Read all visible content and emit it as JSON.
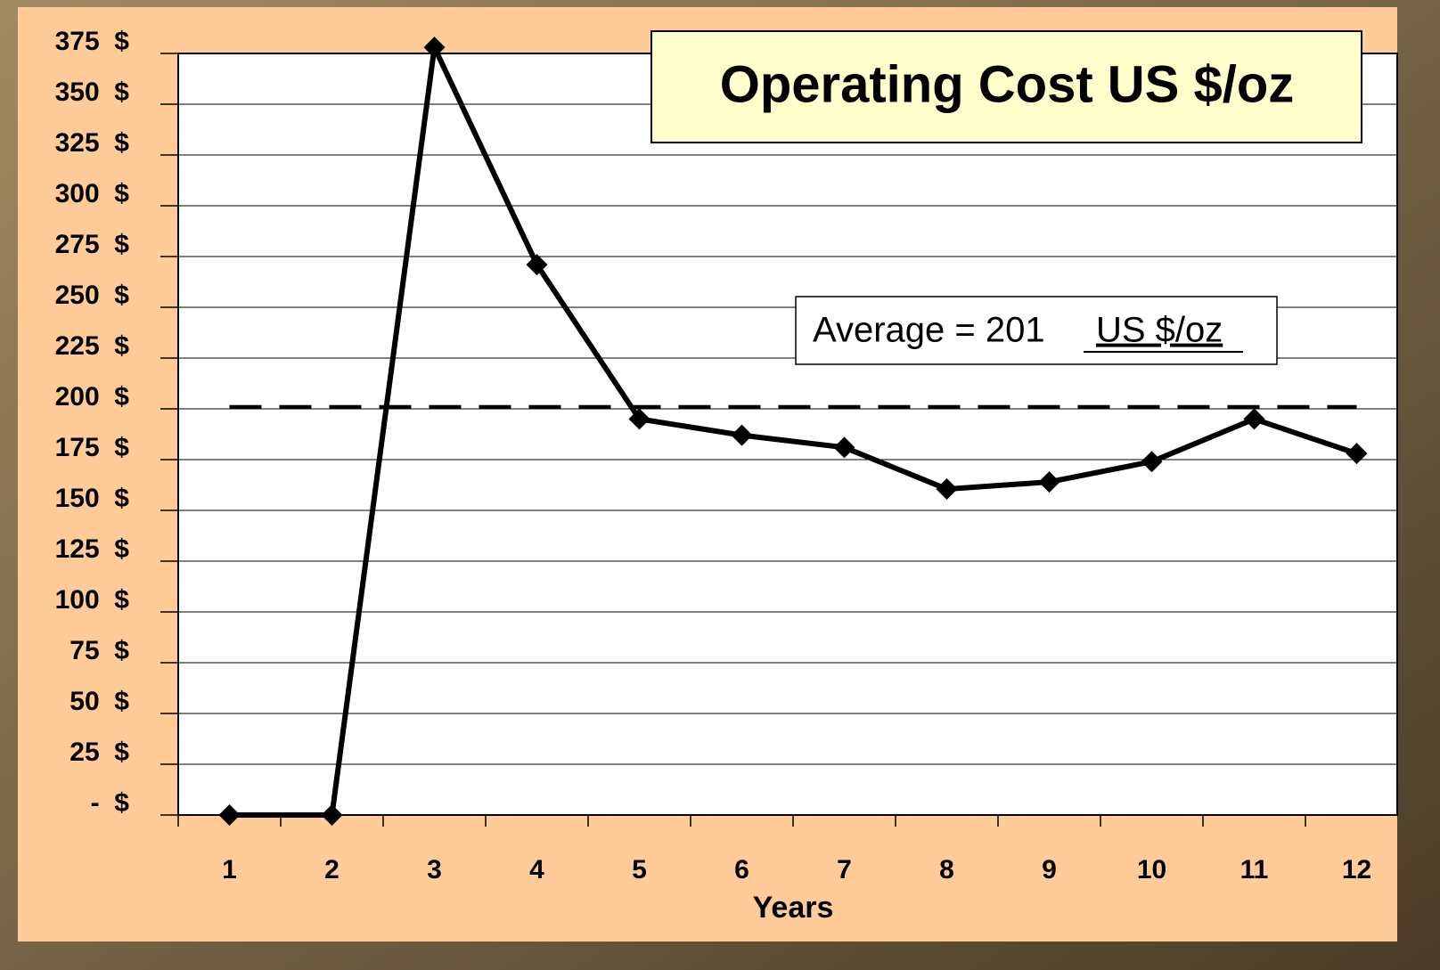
{
  "chart_data": {
    "type": "line",
    "title": "Operating Cost  US $/oz",
    "xlabel": "Years",
    "categories": [
      "1",
      "2",
      "3",
      "4",
      "5",
      "6",
      "7",
      "8",
      "9",
      "10",
      "11",
      "12"
    ],
    "series": [
      {
        "name": "Operating Cost",
        "color": "#000000",
        "values": [
          0,
          0,
          378,
          271,
          195,
          187,
          181,
          160.5,
          164,
          174,
          195,
          178
        ]
      }
    ],
    "average": 201,
    "annotation": "Average = 201",
    "annotation_unit": "US $/oz",
    "ylim": [
      0,
      375
    ],
    "yticks": [
      {
        "value": 0,
        "label": "-  $"
      },
      {
        "value": 25,
        "label": "25  $"
      },
      {
        "value": 50,
        "label": "50  $"
      },
      {
        "value": 75,
        "label": "75  $"
      },
      {
        "value": 100,
        "label": "100  $"
      },
      {
        "value": 125,
        "label": "125  $"
      },
      {
        "value": 150,
        "label": "150  $"
      },
      {
        "value": 175,
        "label": "175  $"
      },
      {
        "value": 200,
        "label": "200  $"
      },
      {
        "value": 225,
        "label": "225  $"
      },
      {
        "value": 250,
        "label": "250  $"
      },
      {
        "value": 275,
        "label": "275  $"
      },
      {
        "value": 300,
        "label": "300  $"
      },
      {
        "value": 325,
        "label": "325  $"
      },
      {
        "value": 350,
        "label": "350  $"
      },
      {
        "value": 375,
        "label": "375  $"
      }
    ],
    "grid": true
  }
}
